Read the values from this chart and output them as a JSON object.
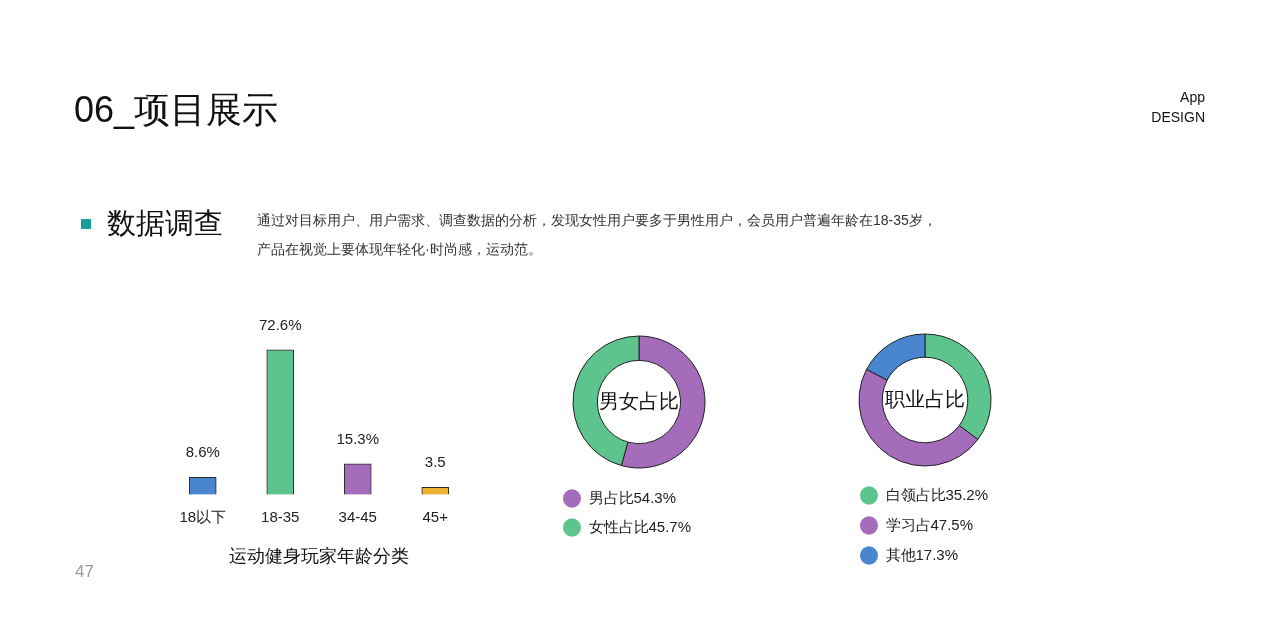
{
  "chart_data": [
    {
      "type": "other",
      "title": "06_项目展示",
      "annotations": [
        "App",
        "DESIGN",
        "数据调查",
        "通过对目标用户、用户需求、调查数据的分析，发现女性用户要多于男性用户，会员用户普遍年龄在18-35岁，",
        "产品在视觉上要体现年轻化·时尚感，运动范。",
        "47"
      ]
    },
    {
      "type": "bar",
      "xlabel": "运动健身玩家年龄分类",
      "categories": [
        "18以下",
        "18-35",
        "34-45",
        "45+"
      ],
      "values": [
        8.6,
        72.6,
        15.3,
        3.5
      ],
      "colors": [
        "#4a86d0",
        "#5ec48e",
        "#a46cba",
        "#f0b030"
      ],
      "value_labels": [
        "8.6%",
        "72.6%",
        "15.3%",
        "3.5"
      ]
    },
    {
      "type": "donut",
      "title": "男女占比",
      "categories": [
        "男占比",
        "女性占比"
      ],
      "values": [
        54.3,
        45.7
      ],
      "colors": [
        "#a46cba",
        "#5ec48e"
      ],
      "value_labels": [
        "54.3%",
        "45.7%"
      ],
      "legend": "bottom"
    },
    {
      "type": "donut",
      "title": "职业占比",
      "categories": [
        "白领占比",
        "学习占",
        "其他"
      ],
      "values": [
        35.2,
        47.5,
        17.3
      ],
      "colors": [
        "#5ec48e",
        "#a46cba",
        "#4a86d0"
      ],
      "value_labels": [
        "35.2%",
        "47.5%",
        "17.3%"
      ],
      "legend": "bottom"
    }
  ]
}
